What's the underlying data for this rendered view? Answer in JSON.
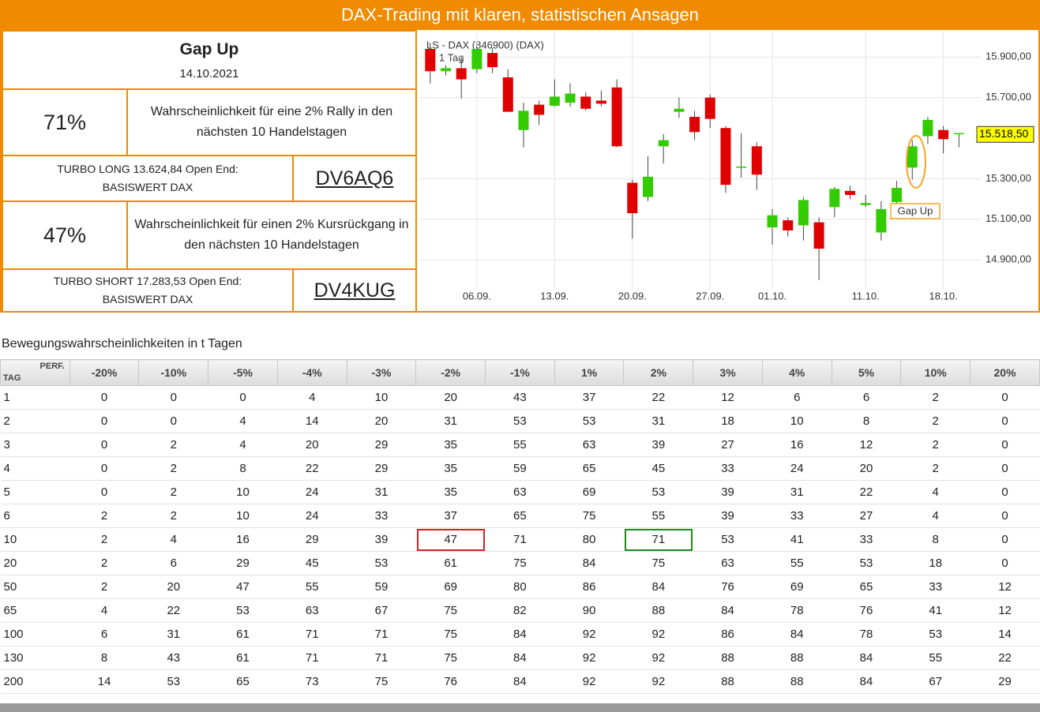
{
  "header": {
    "title": "DAX-Trading mit klaren, statistischen Ansagen"
  },
  "panel": {
    "title": "Gap Up",
    "date": "14.10.2021",
    "long": {
      "probability": "71%",
      "text": "Wahrscheinlichkeit für eine 2% Rally in den nächsten 10 Handelstagen",
      "product_line1": "TURBO LONG 13.624,84 Open End:",
      "product_line2": "BASISWERT DAX",
      "wkn": "DV6AQ6"
    },
    "short": {
      "probability": "47%",
      "text": "Wahrscheinlichkeit für einen 2% Kursrückgang in den nächsten 10 Handelstagen",
      "product_line1": "TURBO SHORT 17.283,53 Open End:",
      "product_line2": "BASISWERT DAX",
      "wkn": "DV4KUG"
    }
  },
  "chart_data": {
    "type": "candlestick",
    "title": "LS - DAX (846900) (DAX)",
    "subtitle": "1 Tag",
    "annotation": "Gap Up",
    "up_color": "#33cc00",
    "down_color": "#e00000",
    "grid": true,
    "last_price": {
      "value": 15518.5,
      "label": "15.518,50"
    },
    "ylim": [
      14780,
      16010
    ],
    "xlim": [
      -0.55,
      35.05
    ],
    "yticks": [
      {
        "value": 15900,
        "label": "15.900,00"
      },
      {
        "value": 15700,
        "label": "15.700,00"
      },
      {
        "value": 15300,
        "label": "15.300,00"
      },
      {
        "value": 15100,
        "label": "15.100,00"
      },
      {
        "value": 14900,
        "label": "14.900,00"
      }
    ],
    "xticks": [
      {
        "value": 3,
        "label": "06.09."
      },
      {
        "value": 8,
        "label": "13.09."
      },
      {
        "value": 13,
        "label": "20.09."
      },
      {
        "value": 18,
        "label": "27.09."
      },
      {
        "value": 22,
        "label": "01.10."
      },
      {
        "value": 28,
        "label": "11.10."
      },
      {
        "value": 33,
        "label": "18.10."
      }
    ],
    "candles": [
      {
        "open": 15940,
        "high": 15970,
        "low": 15770,
        "close": 15830
      },
      {
        "open": 15830,
        "high": 15860,
        "low": 15810,
        "close": 15845
      },
      {
        "open": 15845,
        "high": 15900,
        "low": 15695,
        "close": 15790
      },
      {
        "open": 15840,
        "high": 15950,
        "low": 15820,
        "close": 15940
      },
      {
        "open": 15920,
        "high": 15945,
        "low": 15820,
        "close": 15850
      },
      {
        "open": 15800,
        "high": 15840,
        "low": 15630,
        "close": 15630
      },
      {
        "open": 15540,
        "high": 15675,
        "low": 15455,
        "close": 15635
      },
      {
        "open": 15665,
        "high": 15685,
        "low": 15565,
        "close": 15615
      },
      {
        "open": 15660,
        "high": 15790,
        "low": 15655,
        "close": 15705
      },
      {
        "open": 15675,
        "high": 15770,
        "low": 15655,
        "close": 15720
      },
      {
        "open": 15705,
        "high": 15725,
        "low": 15635,
        "close": 15645
      },
      {
        "open": 15685,
        "high": 15735,
        "low": 15655,
        "close": 15670
      },
      {
        "open": 15750,
        "high": 15790,
        "low": 15455,
        "close": 15460
      },
      {
        "open": 15280,
        "high": 15295,
        "low": 15005,
        "close": 15130
      },
      {
        "open": 15210,
        "high": 15410,
        "low": 15190,
        "close": 15310
      },
      {
        "open": 15460,
        "high": 15520,
        "low": 15375,
        "close": 15490
      },
      {
        "open": 15630,
        "high": 15700,
        "low": 15600,
        "close": 15645
      },
      {
        "open": 15605,
        "high": 15635,
        "low": 15490,
        "close": 15530
      },
      {
        "open": 15700,
        "high": 15715,
        "low": 15550,
        "close": 15595
      },
      {
        "open": 15550,
        "high": 15560,
        "low": 15230,
        "close": 15270
      },
      {
        "open": 15355,
        "high": 15525,
        "low": 15305,
        "close": 15360
      },
      {
        "open": 15460,
        "high": 15480,
        "low": 15245,
        "close": 15320
      },
      {
        "open": 15060,
        "high": 15150,
        "low": 14975,
        "close": 15120
      },
      {
        "open": 15095,
        "high": 15110,
        "low": 15015,
        "close": 15045
      },
      {
        "open": 15070,
        "high": 15210,
        "low": 14995,
        "close": 15195
      },
      {
        "open": 15085,
        "high": 15110,
        "low": 14800,
        "close": 14955
      },
      {
        "open": 15160,
        "high": 15260,
        "low": 15110,
        "close": 15250
      },
      {
        "open": 15240,
        "high": 15265,
        "low": 15200,
        "close": 15220
      },
      {
        "open": 15170,
        "high": 15220,
        "low": 15160,
        "close": 15180
      },
      {
        "open": 15035,
        "high": 15190,
        "low": 14995,
        "close": 15150
      },
      {
        "open": 15185,
        "high": 15290,
        "low": 15160,
        "close": 15255
      },
      {
        "open": 15355,
        "high": 15490,
        "low": 15295,
        "close": 15460
      },
      {
        "open": 15510,
        "high": 15605,
        "low": 15470,
        "close": 15590
      },
      {
        "open": 15540,
        "high": 15560,
        "low": 15425,
        "close": 15495
      },
      {
        "open": 15520,
        "high": 15525,
        "low": 15455,
        "close": 15525
      }
    ]
  },
  "table": {
    "caption": "Bewegungswahrscheinlichkeiten in t Tagen",
    "corner_top": "PERF.",
    "corner_bottom": "TAG",
    "columns": [
      "-20%",
      "-10%",
      "-5%",
      "-4%",
      "-3%",
      "-2%",
      "-1%",
      "1%",
      "2%",
      "3%",
      "4%",
      "5%",
      "10%",
      "20%"
    ],
    "row_labels": [
      1,
      2,
      3,
      4,
      5,
      6,
      10,
      20,
      50,
      65,
      100,
      130,
      200
    ],
    "rows": [
      [
        0,
        0,
        0,
        4,
        10,
        20,
        43,
        37,
        22,
        12,
        6,
        6,
        2,
        0
      ],
      [
        0,
        0,
        4,
        14,
        20,
        31,
        53,
        53,
        31,
        18,
        10,
        8,
        2,
        0
      ],
      [
        0,
        2,
        4,
        20,
        29,
        35,
        55,
        63,
        39,
        27,
        16,
        12,
        2,
        0
      ],
      [
        0,
        2,
        8,
        22,
        29,
        35,
        59,
        65,
        45,
        33,
        24,
        20,
        2,
        0
      ],
      [
        0,
        2,
        10,
        24,
        31,
        35,
        63,
        69,
        53,
        39,
        31,
        22,
        4,
        0
      ],
      [
        2,
        2,
        10,
        24,
        33,
        37,
        65,
        75,
        55,
        39,
        33,
        27,
        4,
        0
      ],
      [
        2,
        4,
        16,
        29,
        39,
        47,
        71,
        80,
        71,
        53,
        41,
        33,
        8,
        0
      ],
      [
        2,
        6,
        29,
        45,
        53,
        61,
        75,
        84,
        75,
        63,
        55,
        53,
        18,
        0
      ],
      [
        2,
        20,
        47,
        55,
        59,
        69,
        80,
        86,
        84,
        76,
        69,
        65,
        33,
        12
      ],
      [
        4,
        22,
        53,
        63,
        67,
        75,
        82,
        90,
        88,
        84,
        78,
        76,
        41,
        12
      ],
      [
        6,
        31,
        61,
        71,
        71,
        75,
        84,
        92,
        92,
        86,
        84,
        78,
        53,
        14
      ],
      [
        8,
        43,
        61,
        71,
        71,
        75,
        84,
        92,
        92,
        88,
        88,
        84,
        55,
        22
      ],
      [
        14,
        53,
        65,
        73,
        75,
        76,
        84,
        92,
        92,
        88,
        88,
        84,
        67,
        29
      ]
    ],
    "marked_cells": [
      {
        "row": 6,
        "column": 5,
        "color": "#d62020"
      },
      {
        "row": 6,
        "column": 8,
        "color": "#1e8a1e"
      }
    ]
  }
}
